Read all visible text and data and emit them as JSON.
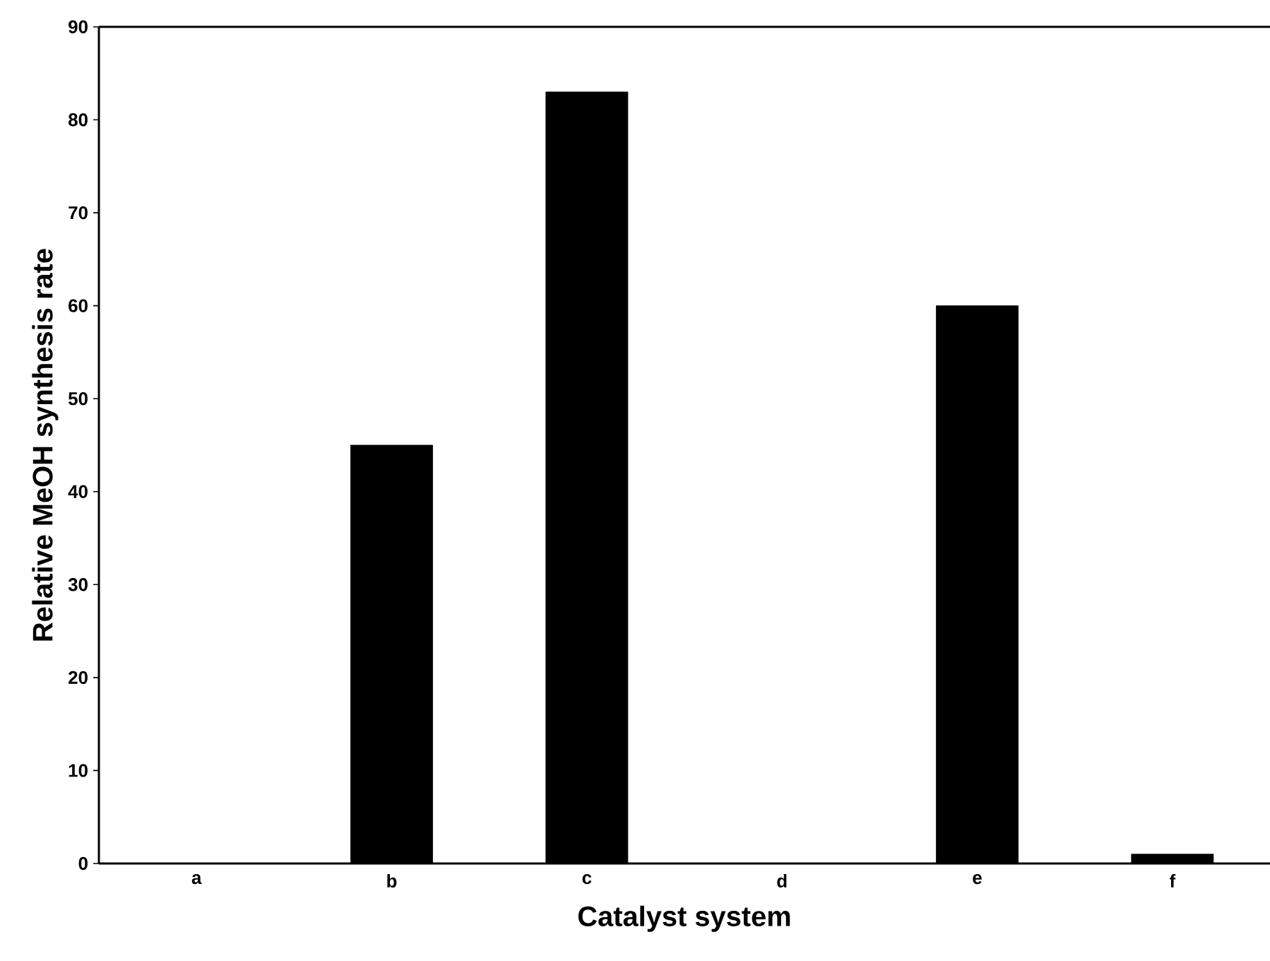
{
  "chart_data": {
    "type": "bar",
    "xlabel": "Catalyst system",
    "ylabel": "Relative MeOH synthesis rate",
    "categories": [
      "a",
      "b",
      "c",
      "d",
      "e",
      "f"
    ],
    "values": [
      0,
      45,
      83,
      0,
      60,
      1
    ],
    "color": "#000000",
    "ylim": [
      0,
      90
    ],
    "yticks": [
      0,
      10,
      20,
      30,
      40,
      50,
      60,
      70,
      80,
      90
    ],
    "grid": false
  }
}
